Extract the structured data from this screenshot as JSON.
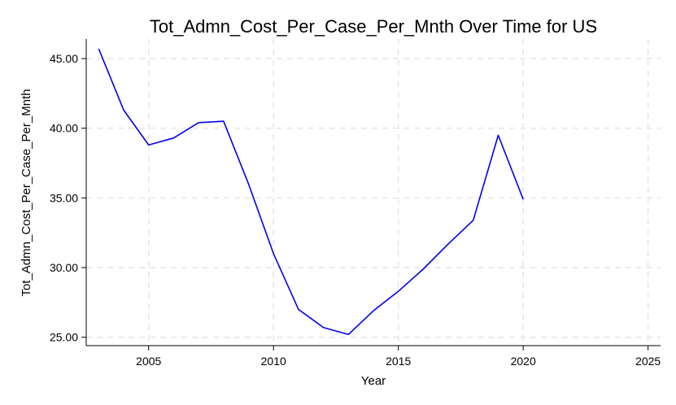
{
  "chart_data": {
    "type": "line",
    "title": "Tot_Admn_Cost_Per_Case_Per_Mnth Over Time for US",
    "xlabel": "Year",
    "ylabel": "Tot_Admn_Cost_Per_Case_Per_Mnth",
    "xlim": [
      2002.5,
      2025.5
    ],
    "ylim": [
      24.4,
      46.4
    ],
    "x_ticks": [
      2005,
      2010,
      2015,
      2020,
      2025
    ],
    "x_tick_labels": [
      "2005",
      "2010",
      "2015",
      "2020",
      "2025"
    ],
    "y_ticks": [
      25,
      30,
      35,
      40,
      45
    ],
    "y_tick_labels": [
      "25.00",
      "30.00",
      "35.00",
      "40.00",
      "45.00"
    ],
    "grid": true,
    "legend": "none",
    "series": [
      {
        "color": "#0000ee",
        "x": [
          2003,
          2004,
          2005,
          2006,
          2007,
          2008,
          2009,
          2010,
          2011,
          2012,
          2013,
          2014,
          2015,
          2016,
          2017,
          2018,
          2019,
          2020
        ],
        "values": [
          45.7,
          41.3,
          38.8,
          39.3,
          40.4,
          40.5,
          36.0,
          31.0,
          27.0,
          25.7,
          25.2,
          26.9,
          28.3,
          29.9,
          31.7,
          33.4,
          39.5,
          34.9
        ]
      }
    ]
  }
}
